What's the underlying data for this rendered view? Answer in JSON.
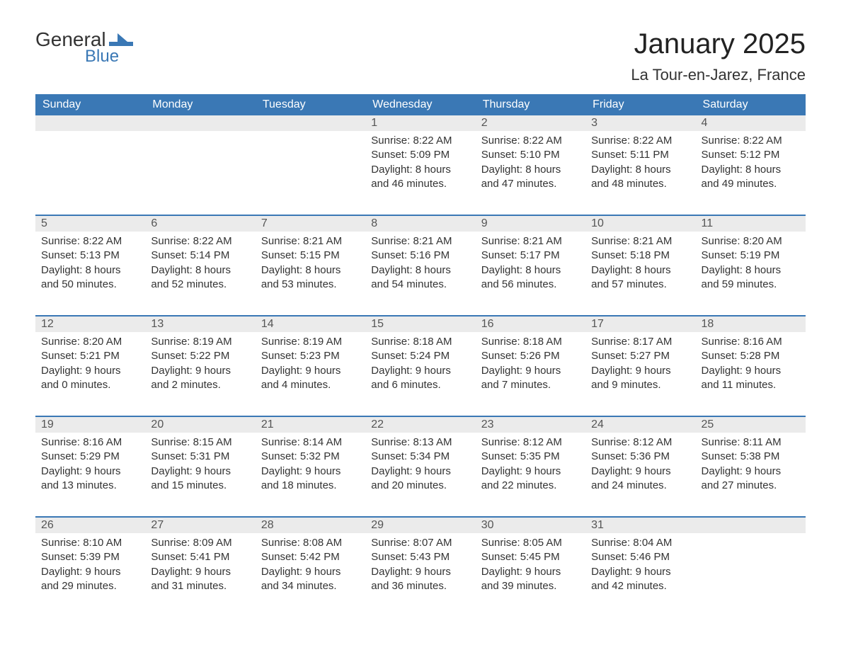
{
  "logo": {
    "line1": "General",
    "line2": "Blue",
    "flag_color": "#3a78b5"
  },
  "header": {
    "month_title": "January 2025",
    "location": "La Tour-en-Jarez, France"
  },
  "colors": {
    "header_bg": "#3a78b5",
    "header_text": "#ffffff",
    "daynum_bg": "#ebebeb",
    "daynum_text": "#555555",
    "row_divider": "#3a78b5",
    "body_text": "#333333",
    "page_bg": "#ffffff"
  },
  "typography": {
    "month_title_fontsize": 40,
    "location_fontsize": 22,
    "weekday_fontsize": 16,
    "daynum_fontsize": 16,
    "body_fontsize": 15,
    "font_family": "Arial"
  },
  "calendar": {
    "weekdays": [
      "Sunday",
      "Monday",
      "Tuesday",
      "Wednesday",
      "Thursday",
      "Friday",
      "Saturday"
    ],
    "labels": {
      "sunrise": "Sunrise:",
      "sunset": "Sunset:",
      "daylight": "Daylight:"
    },
    "weeks": [
      [
        null,
        null,
        null,
        {
          "n": "1",
          "sunrise": "8:22 AM",
          "sunset": "5:09 PM",
          "dl1": "8 hours",
          "dl2": "and 46 minutes."
        },
        {
          "n": "2",
          "sunrise": "8:22 AM",
          "sunset": "5:10 PM",
          "dl1": "8 hours",
          "dl2": "and 47 minutes."
        },
        {
          "n": "3",
          "sunrise": "8:22 AM",
          "sunset": "5:11 PM",
          "dl1": "8 hours",
          "dl2": "and 48 minutes."
        },
        {
          "n": "4",
          "sunrise": "8:22 AM",
          "sunset": "5:12 PM",
          "dl1": "8 hours",
          "dl2": "and 49 minutes."
        }
      ],
      [
        {
          "n": "5",
          "sunrise": "8:22 AM",
          "sunset": "5:13 PM",
          "dl1": "8 hours",
          "dl2": "and 50 minutes."
        },
        {
          "n": "6",
          "sunrise": "8:22 AM",
          "sunset": "5:14 PM",
          "dl1": "8 hours",
          "dl2": "and 52 minutes."
        },
        {
          "n": "7",
          "sunrise": "8:21 AM",
          "sunset": "5:15 PM",
          "dl1": "8 hours",
          "dl2": "and 53 minutes."
        },
        {
          "n": "8",
          "sunrise": "8:21 AM",
          "sunset": "5:16 PM",
          "dl1": "8 hours",
          "dl2": "and 54 minutes."
        },
        {
          "n": "9",
          "sunrise": "8:21 AM",
          "sunset": "5:17 PM",
          "dl1": "8 hours",
          "dl2": "and 56 minutes."
        },
        {
          "n": "10",
          "sunrise": "8:21 AM",
          "sunset": "5:18 PM",
          "dl1": "8 hours",
          "dl2": "and 57 minutes."
        },
        {
          "n": "11",
          "sunrise": "8:20 AM",
          "sunset": "5:19 PM",
          "dl1": "8 hours",
          "dl2": "and 59 minutes."
        }
      ],
      [
        {
          "n": "12",
          "sunrise": "8:20 AM",
          "sunset": "5:21 PM",
          "dl1": "9 hours",
          "dl2": "and 0 minutes."
        },
        {
          "n": "13",
          "sunrise": "8:19 AM",
          "sunset": "5:22 PM",
          "dl1": "9 hours",
          "dl2": "and 2 minutes."
        },
        {
          "n": "14",
          "sunrise": "8:19 AM",
          "sunset": "5:23 PM",
          "dl1": "9 hours",
          "dl2": "and 4 minutes."
        },
        {
          "n": "15",
          "sunrise": "8:18 AM",
          "sunset": "5:24 PM",
          "dl1": "9 hours",
          "dl2": "and 6 minutes."
        },
        {
          "n": "16",
          "sunrise": "8:18 AM",
          "sunset": "5:26 PM",
          "dl1": "9 hours",
          "dl2": "and 7 minutes."
        },
        {
          "n": "17",
          "sunrise": "8:17 AM",
          "sunset": "5:27 PM",
          "dl1": "9 hours",
          "dl2": "and 9 minutes."
        },
        {
          "n": "18",
          "sunrise": "8:16 AM",
          "sunset": "5:28 PM",
          "dl1": "9 hours",
          "dl2": "and 11 minutes."
        }
      ],
      [
        {
          "n": "19",
          "sunrise": "8:16 AM",
          "sunset": "5:29 PM",
          "dl1": "9 hours",
          "dl2": "and 13 minutes."
        },
        {
          "n": "20",
          "sunrise": "8:15 AM",
          "sunset": "5:31 PM",
          "dl1": "9 hours",
          "dl2": "and 15 minutes."
        },
        {
          "n": "21",
          "sunrise": "8:14 AM",
          "sunset": "5:32 PM",
          "dl1": "9 hours",
          "dl2": "and 18 minutes."
        },
        {
          "n": "22",
          "sunrise": "8:13 AM",
          "sunset": "5:34 PM",
          "dl1": "9 hours",
          "dl2": "and 20 minutes."
        },
        {
          "n": "23",
          "sunrise": "8:12 AM",
          "sunset": "5:35 PM",
          "dl1": "9 hours",
          "dl2": "and 22 minutes."
        },
        {
          "n": "24",
          "sunrise": "8:12 AM",
          "sunset": "5:36 PM",
          "dl1": "9 hours",
          "dl2": "and 24 minutes."
        },
        {
          "n": "25",
          "sunrise": "8:11 AM",
          "sunset": "5:38 PM",
          "dl1": "9 hours",
          "dl2": "and 27 minutes."
        }
      ],
      [
        {
          "n": "26",
          "sunrise": "8:10 AM",
          "sunset": "5:39 PM",
          "dl1": "9 hours",
          "dl2": "and 29 minutes."
        },
        {
          "n": "27",
          "sunrise": "8:09 AM",
          "sunset": "5:41 PM",
          "dl1": "9 hours",
          "dl2": "and 31 minutes."
        },
        {
          "n": "28",
          "sunrise": "8:08 AM",
          "sunset": "5:42 PM",
          "dl1": "9 hours",
          "dl2": "and 34 minutes."
        },
        {
          "n": "29",
          "sunrise": "8:07 AM",
          "sunset": "5:43 PM",
          "dl1": "9 hours",
          "dl2": "and 36 minutes."
        },
        {
          "n": "30",
          "sunrise": "8:05 AM",
          "sunset": "5:45 PM",
          "dl1": "9 hours",
          "dl2": "and 39 minutes."
        },
        {
          "n": "31",
          "sunrise": "8:04 AM",
          "sunset": "5:46 PM",
          "dl1": "9 hours",
          "dl2": "and 42 minutes."
        },
        null
      ]
    ]
  }
}
